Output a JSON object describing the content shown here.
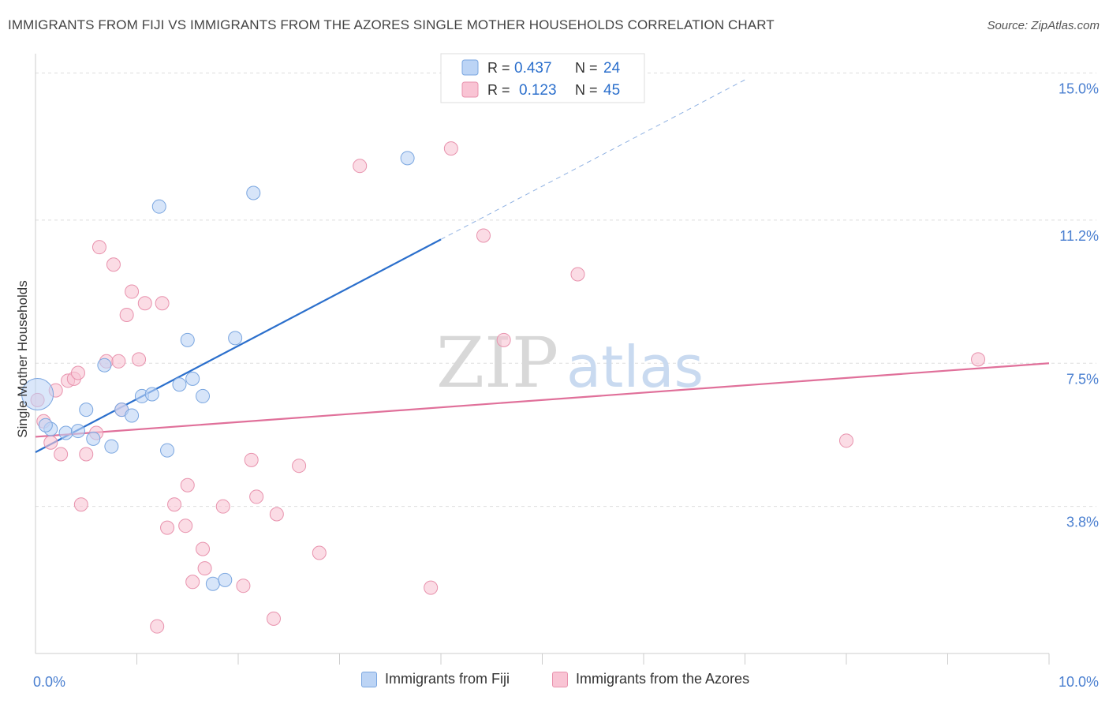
{
  "title": "IMMIGRANTS FROM FIJI VS IMMIGRANTS FROM THE AZORES SINGLE MOTHER HOUSEHOLDS CORRELATION CHART",
  "source": "Source: ZipAtlas.com",
  "watermark": {
    "part1": "ZIP",
    "part2": "atlas"
  },
  "colors": {
    "fiji_fill": "#bcd4f5",
    "fiji_stroke": "#7aa6e0",
    "fiji_line": "#2b6fcc",
    "azores_fill": "#f9c4d4",
    "azores_stroke": "#e892ad",
    "azores_line": "#e0709a",
    "axis_value": "#4a7fd0",
    "grid": "#dddddd"
  },
  "legend_top": {
    "rows": [
      {
        "r_label": "R =",
        "r_value": "0.437",
        "n_label": "N =",
        "n_value": "24"
      },
      {
        "r_label": "R =",
        "r_value": "0.123",
        "n_label": "N =",
        "n_value": "45"
      }
    ]
  },
  "chart_data": {
    "type": "scatter",
    "ylabel": "Single Mother Households",
    "xlabel": "",
    "xlim": [
      0,
      10
    ],
    "ylim": [
      0,
      15.5
    ],
    "x_tick_labels": [
      {
        "value": 0,
        "label": "0.0%"
      },
      {
        "value": 10,
        "label": "10.0%"
      }
    ],
    "y_tick_labels": [
      {
        "value": 15.0,
        "label": "15.0%"
      },
      {
        "value": 11.2,
        "label": "11.2%"
      },
      {
        "value": 7.5,
        "label": "7.5%"
      },
      {
        "value": 3.8,
        "label": "3.8%"
      }
    ],
    "grid": true,
    "legend_position": "top-center",
    "series": [
      {
        "name": "Immigrants from Fiji",
        "points": [
          [
            0.02,
            6.7
          ],
          [
            0.15,
            5.8
          ],
          [
            0.3,
            5.7
          ],
          [
            0.42,
            5.75
          ],
          [
            0.5,
            6.3
          ],
          [
            0.57,
            5.55
          ],
          [
            0.68,
            7.45
          ],
          [
            0.75,
            5.35
          ],
          [
            0.85,
            6.3
          ],
          [
            0.95,
            6.15
          ],
          [
            1.05,
            6.65
          ],
          [
            1.15,
            6.7
          ],
          [
            1.22,
            11.55
          ],
          [
            1.3,
            5.25
          ],
          [
            1.42,
            6.95
          ],
          [
            1.5,
            8.1
          ],
          [
            1.55,
            7.1
          ],
          [
            1.65,
            6.65
          ],
          [
            1.75,
            1.8
          ],
          [
            1.87,
            1.9
          ],
          [
            1.97,
            8.15
          ],
          [
            2.15,
            11.9
          ],
          [
            3.67,
            12.8
          ],
          [
            0.1,
            5.9
          ]
        ],
        "trend": {
          "x0": 0.0,
          "y0": 5.2,
          "x1": 4.0,
          "y1": 10.7,
          "dash_to_x": 7.0
        }
      },
      {
        "name": "Immigrants from the Azores",
        "points": [
          [
            0.02,
            6.55
          ],
          [
            0.08,
            6.0
          ],
          [
            0.15,
            5.45
          ],
          [
            0.2,
            6.8
          ],
          [
            0.25,
            5.15
          ],
          [
            0.32,
            7.05
          ],
          [
            0.38,
            7.1
          ],
          [
            0.42,
            7.25
          ],
          [
            0.45,
            3.85
          ],
          [
            0.5,
            5.15
          ],
          [
            0.6,
            5.7
          ],
          [
            0.63,
            10.5
          ],
          [
            0.7,
            7.55
          ],
          [
            0.77,
            10.05
          ],
          [
            0.82,
            7.55
          ],
          [
            0.85,
            6.3
          ],
          [
            0.9,
            8.75
          ],
          [
            0.95,
            9.35
          ],
          [
            1.02,
            7.6
          ],
          [
            1.08,
            9.05
          ],
          [
            1.2,
            0.7
          ],
          [
            1.25,
            9.05
          ],
          [
            1.3,
            3.25
          ],
          [
            1.37,
            3.85
          ],
          [
            1.48,
            3.3
          ],
          [
            1.5,
            4.35
          ],
          [
            1.55,
            1.85
          ],
          [
            1.65,
            2.7
          ],
          [
            1.67,
            2.2
          ],
          [
            1.85,
            3.8
          ],
          [
            2.05,
            1.75
          ],
          [
            2.13,
            5.0
          ],
          [
            2.18,
            4.05
          ],
          [
            2.35,
            0.9
          ],
          [
            2.38,
            3.6
          ],
          [
            2.6,
            4.85
          ],
          [
            2.8,
            2.6
          ],
          [
            3.2,
            12.6
          ],
          [
            3.9,
            1.7
          ],
          [
            4.1,
            13.05
          ],
          [
            4.42,
            10.8
          ],
          [
            4.62,
            8.1
          ],
          [
            5.35,
            9.8
          ],
          [
            8.0,
            5.5
          ],
          [
            9.3,
            7.6
          ]
        ],
        "trend": {
          "x0": 0.0,
          "y0": 5.6,
          "x1": 10.0,
          "y1": 7.5
        }
      }
    ]
  }
}
